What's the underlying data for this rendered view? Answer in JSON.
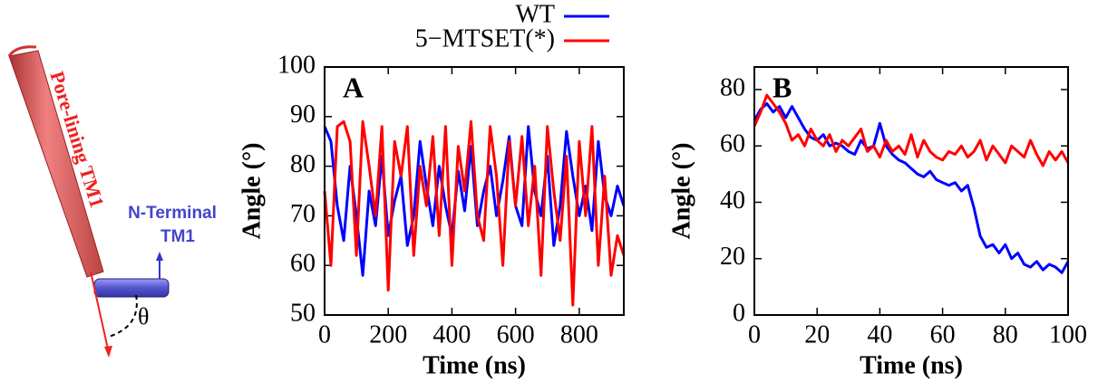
{
  "diagram": {
    "helix_label": "Pore-lining TM1",
    "nterm_label_1": "N-Terminal",
    "nterm_label_2": "TM1",
    "angle_label": "θ"
  },
  "chart_data": [
    {
      "type": "line",
      "title": "A",
      "xlabel": "Time (ns)",
      "ylabel": "Angle (°)",
      "x": [
        0,
        20,
        40,
        60,
        80,
        100,
        120,
        140,
        160,
        180,
        200,
        220,
        240,
        260,
        280,
        300,
        320,
        340,
        360,
        380,
        400,
        420,
        440,
        460,
        480,
        500,
        520,
        540,
        560,
        580,
        600,
        620,
        640,
        660,
        680,
        700,
        720,
        740,
        760,
        780,
        800,
        820,
        840,
        860,
        880,
        900,
        920,
        940
      ],
      "series": [
        {
          "name": "WT",
          "color": "#0000ff",
          "values": [
            88,
            85,
            72,
            65,
            80,
            70,
            58,
            75,
            68,
            82,
            66,
            73,
            78,
            64,
            70,
            85,
            76,
            68,
            80,
            72,
            66,
            79,
            71,
            84,
            68,
            75,
            80,
            70,
            77,
            86,
            72,
            68,
            88,
            75,
            70,
            82,
            64,
            72,
            87,
            78,
            70,
            76,
            67,
            85,
            74,
            70,
            76,
            72
          ]
        },
        {
          "name": "5−MTSET(*)",
          "color": "#ff0000",
          "values": [
            75,
            60,
            88,
            89,
            85,
            62,
            89,
            80,
            70,
            88,
            55,
            85,
            78,
            88,
            62,
            80,
            72,
            86,
            66,
            88,
            60,
            84,
            75,
            89,
            70,
            65,
            88,
            78,
            60,
            85,
            72,
            86,
            68,
            80,
            58,
            88,
            75,
            65,
            82,
            52,
            85,
            70,
            88,
            60,
            78,
            58,
            66,
            62
          ]
        }
      ],
      "xlim": [
        0,
        940
      ],
      "ylim": [
        50,
        100
      ],
      "xticks": [
        0,
        200,
        400,
        600,
        800
      ],
      "yticks": [
        50,
        60,
        70,
        80,
        90,
        100
      ]
    },
    {
      "type": "line",
      "title": "B",
      "xlabel": "Time (ns)",
      "ylabel": "Angle (°)",
      "x": [
        0,
        2,
        4,
        6,
        8,
        10,
        12,
        14,
        16,
        18,
        20,
        22,
        24,
        26,
        28,
        30,
        32,
        34,
        36,
        38,
        40,
        42,
        44,
        46,
        48,
        50,
        52,
        54,
        56,
        58,
        60,
        62,
        64,
        66,
        68,
        70,
        72,
        74,
        76,
        78,
        80,
        82,
        84,
        86,
        88,
        90,
        92,
        94,
        96,
        98,
        100
      ],
      "series": [
        {
          "color": "#0000ff",
          "values": [
            69,
            73,
            75,
            72,
            74,
            70,
            74,
            70,
            66,
            63,
            62,
            64,
            60,
            61,
            60,
            58,
            57,
            62,
            59,
            60,
            68,
            60,
            57,
            55,
            54,
            52,
            50,
            49,
            51,
            48,
            47,
            46,
            47,
            44,
            46,
            38,
            28,
            24,
            25,
            22,
            25,
            20,
            22,
            18,
            17,
            19,
            16,
            18,
            17,
            15,
            19
          ]
        },
        {
          "color": "#ff0000",
          "values": [
            67,
            72,
            78,
            75,
            72,
            68,
            62,
            64,
            60,
            66,
            62,
            60,
            64,
            58,
            62,
            60,
            63,
            66,
            58,
            60,
            56,
            62,
            58,
            60,
            57,
            64,
            56,
            62,
            58,
            56,
            55,
            58,
            57,
            60,
            56,
            58,
            62,
            55,
            60,
            57,
            54,
            60,
            58,
            56,
            62,
            57,
            53,
            58,
            55,
            58,
            54
          ]
        }
      ],
      "xlim": [
        0,
        100
      ],
      "ylim": [
        0,
        88
      ],
      "xticks": [
        0,
        20,
        40,
        60,
        80,
        100
      ],
      "yticks": [
        0,
        20,
        40,
        60,
        80
      ]
    }
  ]
}
